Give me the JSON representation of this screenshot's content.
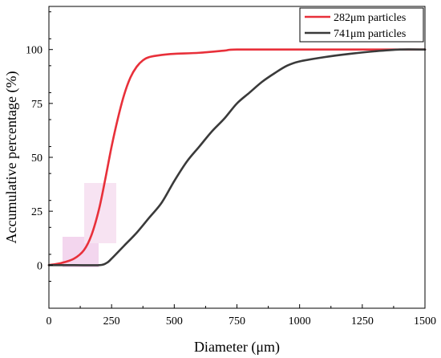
{
  "chart_data": {
    "type": "line",
    "title": "",
    "xlabel": "Diameter (μm)",
    "ylabel": "Accumulative percentage (%)",
    "xlim": [
      0,
      1500
    ],
    "ylim": [
      -20,
      120
    ],
    "x_ticks": [
      0,
      250,
      500,
      750,
      1000,
      1250,
      1500
    ],
    "y_ticks": [
      0,
      25,
      50,
      75,
      100
    ],
    "grid": false,
    "legend_position": "top-right",
    "series": [
      {
        "name": "282μm particles",
        "color": "#e8303a",
        "points": [
          [
            0,
            0
          ],
          [
            50,
            1
          ],
          [
            100,
            3
          ],
          [
            140,
            7
          ],
          [
            170,
            14
          ],
          [
            200,
            26
          ],
          [
            225,
            40
          ],
          [
            250,
            55
          ],
          [
            275,
            68
          ],
          [
            300,
            79
          ],
          [
            325,
            87
          ],
          [
            350,
            92
          ],
          [
            375,
            95
          ],
          [
            400,
            96.5
          ],
          [
            450,
            97.5
          ],
          [
            500,
            98
          ],
          [
            600,
            98.5
          ],
          [
            700,
            99.5
          ],
          [
            750,
            100
          ],
          [
            1000,
            100
          ],
          [
            1250,
            100
          ],
          [
            1500,
            100
          ]
        ]
      },
      {
        "name": "741μm particles",
        "color": "#3a3a3a",
        "points": [
          [
            0,
            0
          ],
          [
            100,
            0
          ],
          [
            200,
            0
          ],
          [
            230,
            1
          ],
          [
            250,
            3
          ],
          [
            300,
            9
          ],
          [
            350,
            15
          ],
          [
            400,
            22
          ],
          [
            450,
            29
          ],
          [
            500,
            39
          ],
          [
            550,
            48
          ],
          [
            600,
            55
          ],
          [
            650,
            62
          ],
          [
            700,
            68
          ],
          [
            750,
            75
          ],
          [
            800,
            80
          ],
          [
            850,
            85
          ],
          [
            900,
            89
          ],
          [
            950,
            92.5
          ],
          [
            1000,
            94.5
          ],
          [
            1100,
            96.5
          ],
          [
            1200,
            98
          ],
          [
            1300,
            99.2
          ],
          [
            1400,
            100
          ],
          [
            1500,
            100
          ]
        ]
      }
    ]
  }
}
